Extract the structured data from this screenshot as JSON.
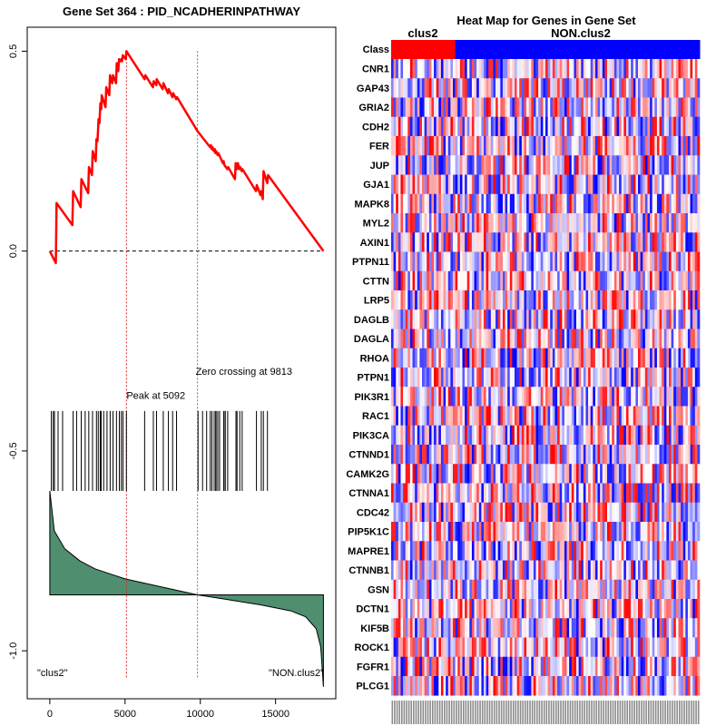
{
  "chart_data": [
    {
      "type": "line",
      "title": "Gene Set  364 : PID_NCADHERINPATHWAY",
      "xlabel": "",
      "ylabel": "",
      "xlim": [
        -1500,
        19000
      ],
      "ylim": [
        -1.12,
        0.56
      ],
      "x_ticks": [
        0,
        5000,
        10000,
        15000
      ],
      "x_tick_labels": [
        "0",
        "5000",
        "10000",
        "15000"
      ],
      "y_ticks": [
        0.5,
        0.0,
        -0.5,
        -1.0
      ],
      "y_tick_labels": [
        "0.5",
        "0.0",
        "-0.5",
        "-1.0"
      ],
      "colors": {
        "es_line": "#ff0000",
        "peak_line": "#dd2222",
        "zero_line": "#22aa22",
        "ranked_fill": "#4f8f70"
      },
      "n_genes": 18180,
      "peak": {
        "x": 5092,
        "label": "Peak at 5092"
      },
      "zero_crossing": {
        "x": 9813,
        "label": "Zero crossing at 9813"
      },
      "hits": [
        100,
        230,
        310,
        550,
        850,
        1550,
        1780,
        2090,
        2350,
        2590,
        2840,
        3100,
        3220,
        3350,
        3380,
        3410,
        3580,
        3800,
        4010,
        4200,
        4430,
        4620,
        4750,
        4860,
        5090,
        6300,
        6880,
        7090,
        7540,
        7880,
        8160,
        8420,
        9850,
        10150,
        10420,
        10660,
        10770,
        10920,
        11020,
        11050,
        11160,
        11280,
        11550,
        11640,
        11660,
        11820,
        12370,
        12440,
        12620,
        12780,
        13730,
        14050,
        14190,
        14460
      ],
      "series": [
        {
          "name": "Enrichment score",
          "x": [
            0,
            400,
            450,
            1500,
            1550,
            2050,
            2100,
            2550,
            2600,
            2800,
            2850,
            3050,
            3100,
            3170,
            3240,
            3300,
            3360,
            3420,
            3450,
            3700,
            3750,
            3950,
            4000,
            4150,
            4200,
            4400,
            4450,
            4550,
            4600,
            4700,
            4750,
            4800,
            4850,
            5050,
            5092,
            6300,
            6350,
            6850,
            6900,
            7080,
            7100,
            7500,
            7550,
            7850,
            7900,
            8150,
            8200,
            8400,
            8450,
            9813,
            10650,
            10700,
            10760,
            10810,
            10900,
            10960,
            11000,
            11050,
            11150,
            11200,
            11500,
            11550,
            11600,
            11800,
            11850,
            12300,
            12350,
            12430,
            12500,
            12580,
            12650,
            12750,
            12800,
            13700,
            13750,
            14000,
            14050,
            14150,
            14200,
            14450,
            14500,
            18180
          ],
          "y": [
            0.0,
            -0.03,
            0.12,
            0.065,
            0.15,
            0.11,
            0.18,
            0.145,
            0.21,
            0.19,
            0.25,
            0.225,
            0.28,
            0.275,
            0.33,
            0.32,
            0.37,
            0.355,
            0.39,
            0.36,
            0.41,
            0.39,
            0.44,
            0.42,
            0.44,
            0.42,
            0.47,
            0.45,
            0.48,
            0.475,
            0.48,
            0.475,
            0.49,
            0.48,
            0.5,
            0.43,
            0.44,
            0.41,
            0.425,
            0.415,
            0.43,
            0.405,
            0.42,
            0.395,
            0.405,
            0.385,
            0.395,
            0.38,
            0.385,
            0.3,
            0.26,
            0.265,
            0.255,
            0.26,
            0.25,
            0.255,
            0.245,
            0.25,
            0.24,
            0.245,
            0.22,
            0.225,
            0.215,
            0.205,
            0.21,
            0.18,
            0.22,
            0.205,
            0.22,
            0.205,
            0.21,
            0.2,
            0.205,
            0.15,
            0.165,
            0.14,
            0.15,
            0.13,
            0.2,
            0.17,
            0.19,
            0.0
          ]
        }
      ],
      "ranked_metric": {
        "baseline": -0.86,
        "x": [
          0,
          300,
          1000,
          2000,
          3000,
          5000,
          8000,
          9813,
          11500,
          14000,
          16000,
          17000,
          17700,
          18000,
          18180
        ],
        "y": [
          -0.6,
          -0.7,
          -0.745,
          -0.775,
          -0.795,
          -0.82,
          -0.845,
          -0.86,
          -0.87,
          -0.885,
          -0.9,
          -0.915,
          -0.945,
          -0.99,
          -1.09
        ]
      },
      "annotations": [
        "\"clus2\"",
        "\"NON.clus2\""
      ]
    },
    {
      "type": "heatmap",
      "title": "Heat Map for Genes in Gene Set",
      "class_label": "Class",
      "class_groups": [
        {
          "name": "clus2",
          "count": 27,
          "color": "#ff0000"
        },
        {
          "name": "NON.clus2",
          "count": 103,
          "color": "#0000ff"
        }
      ],
      "n_samples": 130,
      "genes": [
        "CNR1",
        "GAP43",
        "GRIA2",
        "CDH2",
        "FER",
        "JUP",
        "GJA1",
        "MAPK8",
        "MYL2",
        "AXIN1",
        "PTPN11",
        "CTTN",
        "LRP5",
        "DAGLB",
        "DAGLA",
        "RHOA",
        "PTPN1",
        "PIK3R1",
        "RAC1",
        "PIK3CA",
        "CTNND1",
        "CAMK2G",
        "CTNNA1",
        "CDC42",
        "PIP5K1C",
        "MAPRE1",
        "CTNNB1",
        "GSN",
        "DCTN1",
        "KIF5B",
        "ROCK1",
        "FGFR1",
        "PLCG1"
      ],
      "color_scale": [
        "#0000ff",
        "#ffffff",
        "#ff0000"
      ],
      "value_range": [
        -1,
        1
      ]
    }
  ]
}
